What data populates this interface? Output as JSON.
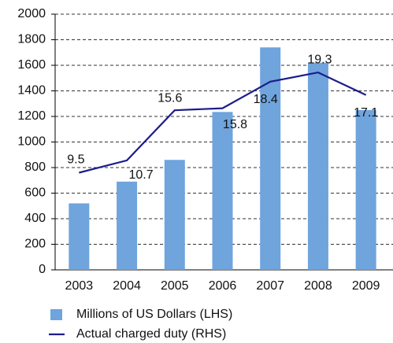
{
  "chart_data": {
    "type": "bar-line",
    "categories": [
      "2003",
      "2004",
      "2005",
      "2006",
      "2007",
      "2008",
      "2009"
    ],
    "series": [
      {
        "name": "Millions of US Dollars (LHS)",
        "type": "bar",
        "color": "#6fa4dd",
        "values": [
          520,
          690,
          860,
          1235,
          1740,
          1620,
          1250
        ]
      },
      {
        "name": "Actual charged duty (RHS)",
        "type": "line",
        "axis": "y2",
        "color": "#1c1c8c",
        "values": [
          9.5,
          10.7,
          15.6,
          15.8,
          18.4,
          19.3,
          17.1
        ]
      }
    ],
    "ylim": [
      0,
      2000
    ],
    "yticks": [
      0,
      200,
      400,
      600,
      800,
      1000,
      1200,
      1400,
      1600,
      1800,
      2000
    ],
    "y2lim": [
      0,
      25
    ],
    "grid": true,
    "legend": "bottom"
  }
}
